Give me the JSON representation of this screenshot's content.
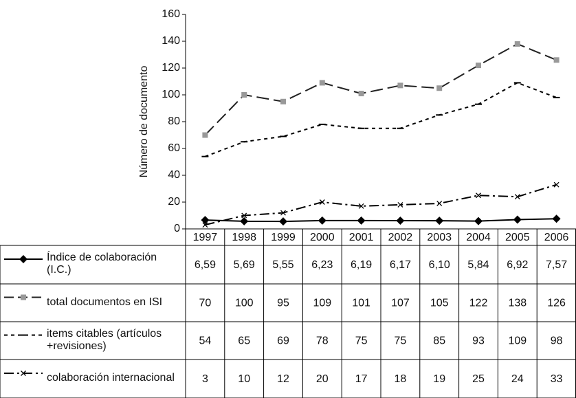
{
  "chart_data": {
    "type": "line",
    "y_label": "Número de documento",
    "categories": [
      "1997",
      "1998",
      "1999",
      "2000",
      "2001",
      "2002",
      "2003",
      "2004",
      "2005",
      "2006"
    ],
    "ylim": [
      0,
      160
    ],
    "yticks": [
      0,
      20,
      40,
      60,
      80,
      100,
      120,
      140,
      160
    ],
    "series": [
      {
        "name": "Índice de colaboración (I.C.)",
        "color": "#000000",
        "marker": "diamond",
        "line_style": "solid",
        "values": [
          6.59,
          5.69,
          5.55,
          6.23,
          6.19,
          6.17,
          6.1,
          5.84,
          6.92,
          7.57
        ],
        "value_labels": [
          "6,59",
          "5,69",
          "5,55",
          "6,23",
          "6,19",
          "6,17",
          "6,10",
          "5,84",
          "6,92",
          "7,57"
        ]
      },
      {
        "name": "total documentos en ISI",
        "color": "#999999",
        "marker": "square",
        "line_style": "dashed",
        "values": [
          70,
          100,
          95,
          109,
          101,
          107,
          105,
          122,
          138,
          126
        ]
      },
      {
        "name": "items  citables (artículos +revisiones)",
        "color": "#000000",
        "marker": "hline",
        "line_style": "dotted",
        "values": [
          54,
          65,
          69,
          78,
          75,
          75,
          85,
          93,
          109,
          98
        ]
      },
      {
        "name": "colaboración internacional",
        "color": "#000000",
        "marker": "x",
        "line_style": "dashdot",
        "values": [
          3,
          10,
          12,
          20,
          17,
          18,
          19,
          25,
          24,
          33
        ]
      }
    ]
  }
}
